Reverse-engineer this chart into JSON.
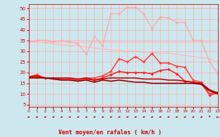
{
  "xlabel": "Vent moyen/en rafales ( km/h )",
  "xlim": [
    0,
    23
  ],
  "ylim": [
    4,
    52
  ],
  "yticks": [
    5,
    10,
    15,
    20,
    25,
    30,
    35,
    40,
    45,
    50
  ],
  "xticks": [
    0,
    1,
    2,
    3,
    4,
    5,
    6,
    7,
    8,
    9,
    10,
    11,
    12,
    13,
    14,
    15,
    16,
    17,
    18,
    19,
    20,
    21,
    22,
    23
  ],
  "background_color": "#cce8ee",
  "grid_color": "#ffaaaa",
  "x": [
    0,
    1,
    2,
    3,
    4,
    5,
    6,
    7,
    8,
    9,
    10,
    11,
    12,
    13,
    14,
    15,
    16,
    17,
    18,
    19,
    20,
    21,
    22,
    23
  ],
  "lines": [
    {
      "y": [
        34.5,
        34.5,
        34.5,
        34.5,
        34.5,
        34.5,
        34.5,
        34.5,
        34.5,
        34.5,
        34.5,
        34.5,
        34.5,
        34.5,
        34.5,
        34.5,
        34.5,
        34.5,
        34.5,
        34.5,
        34.5,
        34.5,
        34.5,
        34.5
      ],
      "color": "#ffbbbb",
      "lw": 1.0,
      "marker": null,
      "zorder": 1
    },
    {
      "y": [
        34.5,
        34.5,
        34.0,
        33.5,
        33.0,
        32.5,
        32.5,
        32.0,
        31.5,
        31.0,
        30.5,
        30.5,
        30.0,
        30.0,
        29.5,
        29.5,
        29.0,
        29.0,
        28.5,
        28.0,
        27.5,
        27.0,
        26.5,
        25.0
      ],
      "color": "#ffbbbb",
      "lw": 1.0,
      "marker": null,
      "zorder": 1
    },
    {
      "y": [
        34.5,
        35.0,
        35.0,
        34.5,
        35.0,
        34.5,
        33.5,
        28.5,
        37.0,
        32.5,
        47.5,
        47.5,
        50.5,
        50.5,
        47.5,
        40.5,
        46.0,
        45.5,
        43.5,
        43.5,
        35.0,
        35.0,
        25.0,
        19.5
      ],
      "color": "#ffaaaa",
      "lw": 1.0,
      "marker": "D",
      "markersize": 2.0,
      "zorder": 2
    },
    {
      "y": [
        18.0,
        19.0,
        17.5,
        17.5,
        17.0,
        17.0,
        16.5,
        17.5,
        17.5,
        18.5,
        20.5,
        26.5,
        25.0,
        27.5,
        25.0,
        29.0,
        24.5,
        24.5,
        23.0,
        22.5,
        16.5,
        15.5,
        10.0,
        11.0
      ],
      "color": "#ff4444",
      "lw": 1.2,
      "marker": "D",
      "markersize": 2.0,
      "zorder": 4
    },
    {
      "y": [
        18.0,
        18.5,
        17.5,
        17.5,
        17.5,
        17.5,
        17.0,
        17.5,
        16.5,
        17.0,
        17.5,
        17.5,
        17.5,
        17.5,
        17.0,
        17.0,
        17.0,
        16.5,
        16.5,
        16.0,
        15.5,
        15.0,
        12.0,
        10.5
      ],
      "color": "#cc0000",
      "lw": 1.2,
      "marker": null,
      "zorder": 5
    },
    {
      "y": [
        18.0,
        18.0,
        17.5,
        17.5,
        17.0,
        17.0,
        16.5,
        17.0,
        16.5,
        17.5,
        19.0,
        20.5,
        20.0,
        20.0,
        20.0,
        19.5,
        21.0,
        21.5,
        19.5,
        16.0,
        15.5,
        15.0,
        9.5,
        10.5
      ],
      "color": "#ff2222",
      "lw": 1.2,
      "marker": "D",
      "markersize": 2.0,
      "zorder": 3
    },
    {
      "y": [
        17.5,
        17.5,
        17.5,
        17.0,
        16.5,
        16.5,
        16.0,
        16.5,
        15.5,
        16.5,
        16.0,
        16.5,
        16.0,
        15.5,
        15.5,
        15.0,
        15.0,
        15.0,
        15.0,
        15.0,
        15.0,
        14.5,
        11.5,
        10.0
      ],
      "color": "#880000",
      "lw": 1.2,
      "marker": null,
      "zorder": 5
    }
  ],
  "arrow_color": "#cc2222",
  "wind_directions": [
    225,
    225,
    225,
    225,
    225,
    225,
    225,
    225,
    225,
    225,
    225,
    225,
    225,
    225,
    225,
    225,
    225,
    225,
    225,
    225,
    225,
    225,
    180,
    270
  ]
}
